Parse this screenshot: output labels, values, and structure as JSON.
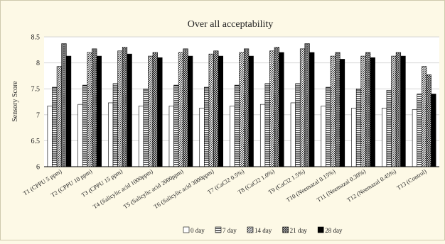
{
  "chart_data": {
    "type": "bar",
    "title": "Over all acceptability",
    "ylabel": "Sensory Score",
    "xlabel": "",
    "ylim": [
      6,
      8.5
    ],
    "yticks": [
      "6",
      "6.5",
      "7",
      "7.5",
      "8",
      "8.5"
    ],
    "grid": true,
    "legend_position": "bottom",
    "categories": [
      "T1 (CPPU 5 ppm)",
      "T2 (CPPU 10 ppm)",
      "T3 (CPPU 15 ppm)",
      "T4 (Salicylic acid 1000ppm)",
      "T5 (Salicylic acid 2000ppm)",
      "T6 (Salicylic acid 3000ppm)",
      "T7 (CaCl2 0.5%)",
      "T8 (CaCl2 1.0%)",
      "T9 (CaCl2 1.5%)",
      "T10 (Neemazal 0.15%)",
      "T11 (Neemazal 0.30%)",
      "T12 (Neemazal 0.45%)",
      "T13 (Control)"
    ],
    "series": [
      {
        "name": "0 day",
        "pattern": "blank",
        "values": [
          7.17,
          7.2,
          7.23,
          7.17,
          7.17,
          7.13,
          7.17,
          7.2,
          7.23,
          7.17,
          7.13,
          7.13,
          7.1
        ]
      },
      {
        "name": "7 day",
        "pattern": "hlines",
        "values": [
          7.53,
          7.57,
          7.6,
          7.5,
          7.57,
          7.53,
          7.57,
          7.6,
          7.6,
          7.53,
          7.5,
          7.47,
          7.4
        ]
      },
      {
        "name": "14 day",
        "pattern": "diagonal",
        "values": [
          7.93,
          8.2,
          8.23,
          8.13,
          8.2,
          8.17,
          8.2,
          8.23,
          8.27,
          8.13,
          8.13,
          8.13,
          7.93
        ]
      },
      {
        "name": "21 day",
        "pattern": "crosshatch",
        "values": [
          8.37,
          8.27,
          8.3,
          8.2,
          8.27,
          8.23,
          8.27,
          8.3,
          8.37,
          8.2,
          8.2,
          8.2,
          7.77
        ]
      },
      {
        "name": "28 day",
        "pattern": "solid",
        "values": [
          8.13,
          8.13,
          8.17,
          8.1,
          8.13,
          8.13,
          8.13,
          8.2,
          8.2,
          8.07,
          8.1,
          8.13,
          7.4
        ]
      }
    ]
  }
}
